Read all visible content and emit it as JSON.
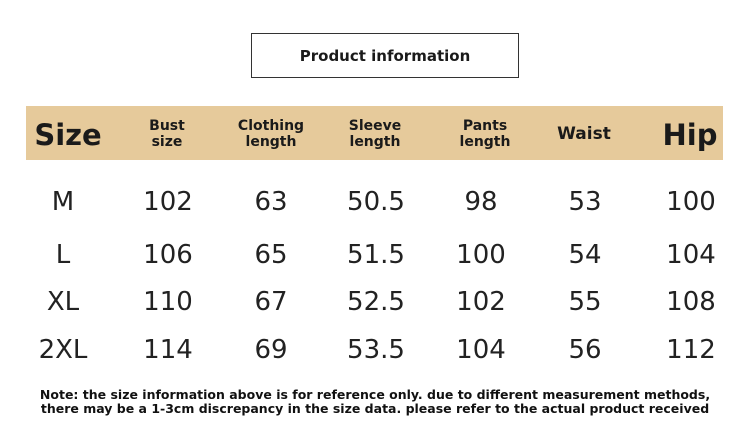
{
  "title": "Product information",
  "table": {
    "header": [
      [
        "Size"
      ],
      [
        "Bust",
        "size"
      ],
      [
        "Clothing",
        "length"
      ],
      [
        "Sleeve",
        "length"
      ],
      [
        "Pants",
        "length"
      ],
      [
        "Waist"
      ],
      [
        "Hip"
      ]
    ],
    "rows": [
      [
        "M",
        "102",
        "63",
        "50.5",
        "98",
        "53",
        "100"
      ],
      [
        "L",
        "106",
        "65",
        "51.5",
        "100",
        "54",
        "104"
      ],
      [
        "XL",
        "110",
        "67",
        "52.5",
        "102",
        "55",
        "108"
      ],
      [
        "2XL",
        "114",
        "69",
        "53.5",
        "104",
        "56",
        "112"
      ]
    ]
  },
  "note": [
    "Note: the size information above is for reference only. due to different measurement methods,",
    "there may be a 1-3cm discrepancy in the size data. please refer to the actual product received"
  ]
}
